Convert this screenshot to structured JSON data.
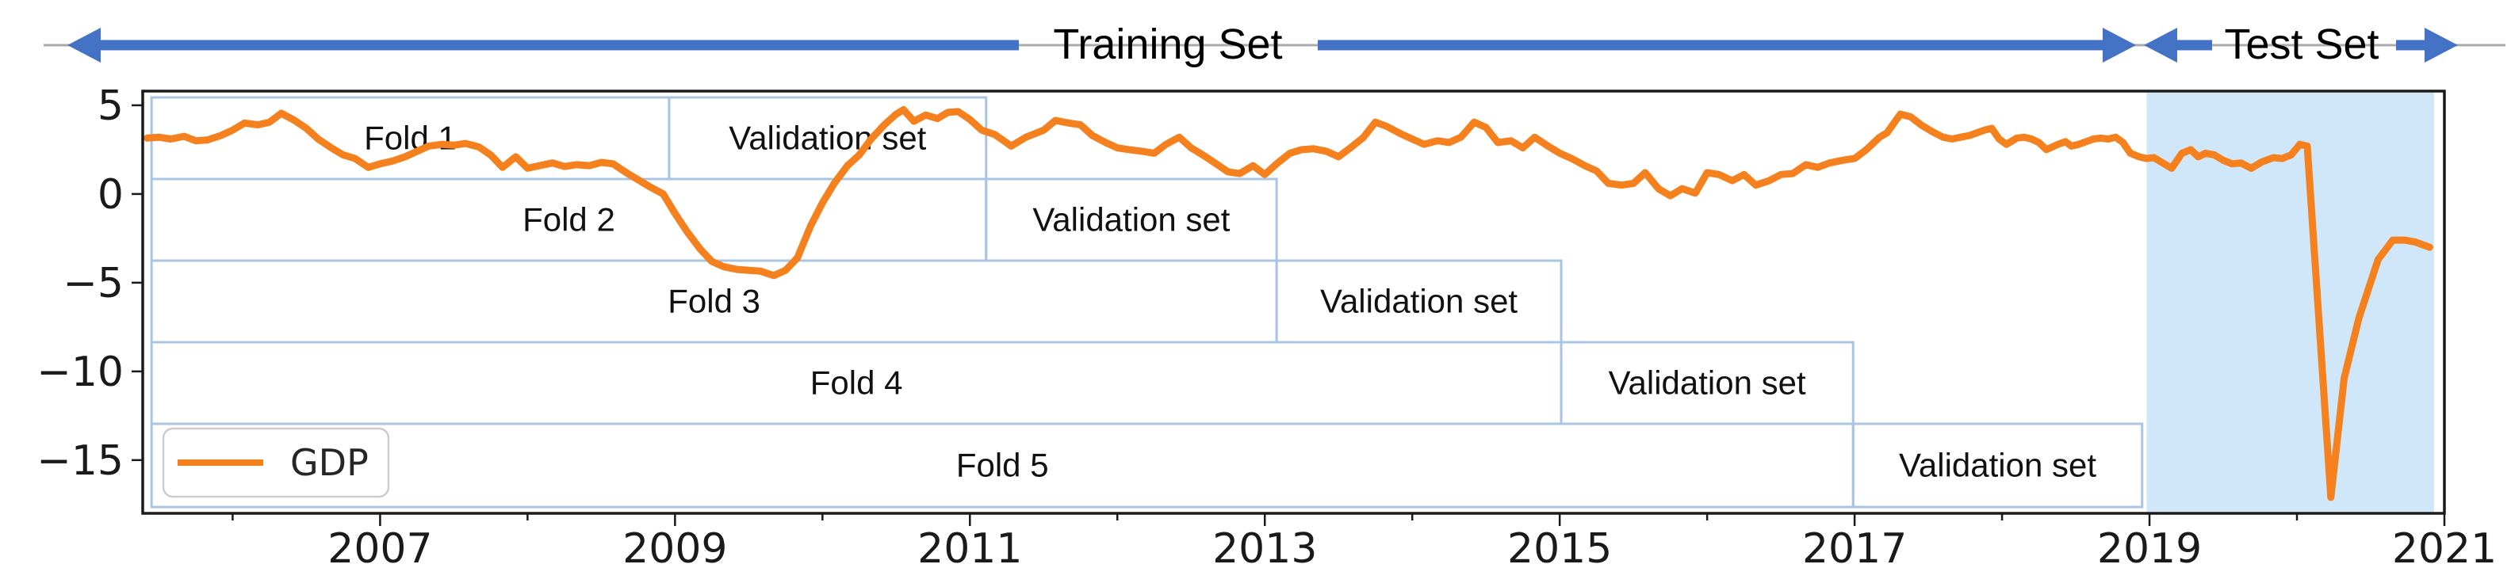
{
  "header": {
    "training_label": "Training Set",
    "test_label": "Test Set",
    "arrow_color": "#4472c4",
    "guide_line_color": "#ababab"
  },
  "chart_data": {
    "type": "line",
    "title": "",
    "xlabel": "",
    "ylabel": "",
    "xlim": [
      2005.39,
      2021.0
    ],
    "ylim": [
      -18.0,
      5.8
    ],
    "grid": false,
    "xticks_labeled": [
      "2007",
      "2009",
      "2011",
      "2013",
      "2015",
      "2017",
      "2019",
      "2021"
    ],
    "xticks_labeled_years": [
      2007,
      2009,
      2011,
      2013,
      2015,
      2017,
      2019,
      2021
    ],
    "xticks_minor_years": [
      2006,
      2008,
      2010,
      2012,
      2014,
      2016,
      2018,
      2020
    ],
    "yticks": [
      "5",
      "0",
      "−5",
      "−10",
      "−15"
    ],
    "ytick_values": [
      5,
      0,
      -5,
      -10,
      -15
    ],
    "legend": {
      "label": "GDP",
      "position": "lower-left"
    },
    "colors": {
      "gdp_line": "#f5801e",
      "box_border": "#a9c4e4",
      "test_fill": "#cfe7f8",
      "frame": "#1a1a1a"
    },
    "folds": [
      {
        "label": "Fold 1",
        "train_start": 2005.45,
        "train_end": 2008.96,
        "val_label": "Validation set",
        "val_start": 2008.96,
        "val_end": 2011.11
      },
      {
        "label": "Fold 2",
        "train_start": 2005.45,
        "train_end": 2011.11,
        "val_label": "Validation set",
        "val_start": 2011.11,
        "val_end": 2013.08
      },
      {
        "label": "Fold 3",
        "train_start": 2005.45,
        "train_end": 2013.08,
        "val_label": "Validation set",
        "val_start": 2013.08,
        "val_end": 2015.01
      },
      {
        "label": "Fold 4",
        "train_start": 2005.45,
        "train_end": 2015.01,
        "val_label": "Validation set",
        "val_start": 2015.01,
        "val_end": 2016.99
      },
      {
        "label": "Fold 5",
        "train_start": 2005.45,
        "train_end": 2016.99,
        "val_label": "Validation set",
        "val_start": 2016.99,
        "val_end": 2018.95
      }
    ],
    "test_region": {
      "start": 2018.98,
      "end": 2020.93
    },
    "series": [
      {
        "name": "GDP",
        "points": [
          [
            2005.42,
            3.15
          ],
          [
            2005.5,
            3.2
          ],
          [
            2005.58,
            3.1
          ],
          [
            2005.67,
            3.25
          ],
          [
            2005.75,
            3.0
          ],
          [
            2005.83,
            3.05
          ],
          [
            2005.92,
            3.3
          ],
          [
            2006.0,
            3.6
          ],
          [
            2006.08,
            4.0
          ],
          [
            2006.17,
            3.9
          ],
          [
            2006.25,
            4.05
          ],
          [
            2006.33,
            4.55
          ],
          [
            2006.42,
            4.15
          ],
          [
            2006.5,
            3.7
          ],
          [
            2006.58,
            3.1
          ],
          [
            2006.67,
            2.6
          ],
          [
            2006.75,
            2.2
          ],
          [
            2006.83,
            2.0
          ],
          [
            2006.92,
            1.5
          ],
          [
            2007.0,
            1.7
          ],
          [
            2007.08,
            1.85
          ],
          [
            2007.17,
            2.1
          ],
          [
            2007.25,
            2.4
          ],
          [
            2007.33,
            2.7
          ],
          [
            2007.42,
            2.8
          ],
          [
            2007.5,
            2.75
          ],
          [
            2007.58,
            2.85
          ],
          [
            2007.67,
            2.65
          ],
          [
            2007.75,
            2.2
          ],
          [
            2007.83,
            1.5
          ],
          [
            2007.92,
            2.1
          ],
          [
            2008.0,
            1.45
          ],
          [
            2008.08,
            1.6
          ],
          [
            2008.17,
            1.75
          ],
          [
            2008.25,
            1.55
          ],
          [
            2008.33,
            1.65
          ],
          [
            2008.42,
            1.6
          ],
          [
            2008.5,
            1.78
          ],
          [
            2008.58,
            1.7
          ],
          [
            2008.67,
            1.2
          ],
          [
            2008.75,
            0.8
          ],
          [
            2008.83,
            0.4
          ],
          [
            2008.92,
            0.0
          ],
          [
            2009.0,
            -1.1
          ],
          [
            2009.08,
            -2.1
          ],
          [
            2009.17,
            -3.1
          ],
          [
            2009.25,
            -3.8
          ],
          [
            2009.33,
            -4.1
          ],
          [
            2009.42,
            -4.25
          ],
          [
            2009.5,
            -4.3
          ],
          [
            2009.58,
            -4.35
          ],
          [
            2009.67,
            -4.6
          ],
          [
            2009.75,
            -4.3
          ],
          [
            2009.83,
            -3.6
          ],
          [
            2009.92,
            -1.8
          ],
          [
            2010.0,
            -0.5
          ],
          [
            2010.08,
            0.6
          ],
          [
            2010.17,
            1.6
          ],
          [
            2010.25,
            2.2
          ],
          [
            2010.33,
            3.1
          ],
          [
            2010.42,
            3.9
          ],
          [
            2010.5,
            4.5
          ],
          [
            2010.55,
            4.75
          ],
          [
            2010.62,
            4.1
          ],
          [
            2010.7,
            4.45
          ],
          [
            2010.78,
            4.25
          ],
          [
            2010.85,
            4.6
          ],
          [
            2010.92,
            4.65
          ],
          [
            2011.0,
            4.2
          ],
          [
            2011.08,
            3.6
          ],
          [
            2011.17,
            3.35
          ],
          [
            2011.28,
            2.7
          ],
          [
            2011.38,
            3.2
          ],
          [
            2011.5,
            3.6
          ],
          [
            2011.58,
            4.15
          ],
          [
            2011.67,
            4.0
          ],
          [
            2011.75,
            3.9
          ],
          [
            2011.83,
            3.3
          ],
          [
            2011.92,
            2.9
          ],
          [
            2012.0,
            2.6
          ],
          [
            2012.08,
            2.5
          ],
          [
            2012.17,
            2.4
          ],
          [
            2012.25,
            2.3
          ],
          [
            2012.33,
            2.8
          ],
          [
            2012.42,
            3.2
          ],
          [
            2012.5,
            2.6
          ],
          [
            2012.58,
            2.2
          ],
          [
            2012.67,
            1.7
          ],
          [
            2012.75,
            1.25
          ],
          [
            2012.83,
            1.15
          ],
          [
            2012.92,
            1.6
          ],
          [
            2013.0,
            1.1
          ],
          [
            2013.08,
            1.7
          ],
          [
            2013.17,
            2.3
          ],
          [
            2013.25,
            2.5
          ],
          [
            2013.33,
            2.55
          ],
          [
            2013.42,
            2.4
          ],
          [
            2013.5,
            2.1
          ],
          [
            2013.58,
            2.6
          ],
          [
            2013.67,
            3.2
          ],
          [
            2013.75,
            4.05
          ],
          [
            2013.83,
            3.8
          ],
          [
            2013.92,
            3.4
          ],
          [
            2014.0,
            3.1
          ],
          [
            2014.08,
            2.8
          ],
          [
            2014.17,
            3.0
          ],
          [
            2014.25,
            2.9
          ],
          [
            2014.33,
            3.2
          ],
          [
            2014.42,
            4.05
          ],
          [
            2014.5,
            3.75
          ],
          [
            2014.58,
            2.9
          ],
          [
            2014.67,
            3.0
          ],
          [
            2014.75,
            2.6
          ],
          [
            2014.83,
            3.2
          ],
          [
            2014.92,
            2.7
          ],
          [
            2015.0,
            2.3
          ],
          [
            2015.08,
            2.0
          ],
          [
            2015.17,
            1.6
          ],
          [
            2015.25,
            1.3
          ],
          [
            2015.33,
            0.6
          ],
          [
            2015.42,
            0.5
          ],
          [
            2015.5,
            0.6
          ],
          [
            2015.58,
            1.2
          ],
          [
            2015.67,
            0.3
          ],
          [
            2015.75,
            -0.1
          ],
          [
            2015.83,
            0.3
          ],
          [
            2015.92,
            0.05
          ],
          [
            2016.0,
            1.2
          ],
          [
            2016.08,
            1.1
          ],
          [
            2016.17,
            0.75
          ],
          [
            2016.25,
            1.1
          ],
          [
            2016.33,
            0.5
          ],
          [
            2016.42,
            0.75
          ],
          [
            2016.5,
            1.1
          ],
          [
            2016.58,
            1.15
          ],
          [
            2016.67,
            1.65
          ],
          [
            2016.75,
            1.5
          ],
          [
            2016.83,
            1.75
          ],
          [
            2016.92,
            1.9
          ],
          [
            2017.0,
            2.0
          ],
          [
            2017.08,
            2.5
          ],
          [
            2017.17,
            3.2
          ],
          [
            2017.22,
            3.45
          ],
          [
            2017.31,
            4.5
          ],
          [
            2017.38,
            4.35
          ],
          [
            2017.45,
            3.9
          ],
          [
            2017.53,
            3.5
          ],
          [
            2017.6,
            3.2
          ],
          [
            2017.66,
            3.1
          ],
          [
            2017.72,
            3.2
          ],
          [
            2017.78,
            3.3
          ],
          [
            2017.88,
            3.6
          ],
          [
            2017.93,
            3.7
          ],
          [
            2017.98,
            3.1
          ],
          [
            2018.03,
            2.8
          ],
          [
            2018.1,
            3.15
          ],
          [
            2018.15,
            3.2
          ],
          [
            2018.2,
            3.1
          ],
          [
            2018.25,
            2.9
          ],
          [
            2018.3,
            2.5
          ],
          [
            2018.38,
            2.8
          ],
          [
            2018.43,
            2.95
          ],
          [
            2018.47,
            2.7
          ],
          [
            2018.52,
            2.8
          ],
          [
            2018.57,
            2.95
          ],
          [
            2018.62,
            3.1
          ],
          [
            2018.67,
            3.15
          ],
          [
            2018.72,
            3.1
          ],
          [
            2018.77,
            3.2
          ],
          [
            2018.82,
            2.9
          ],
          [
            2018.87,
            2.3
          ],
          [
            2018.93,
            2.1
          ],
          [
            2018.98,
            2.0
          ],
          [
            2019.03,
            2.05
          ],
          [
            2019.09,
            1.75
          ],
          [
            2019.15,
            1.45
          ],
          [
            2019.22,
            2.3
          ],
          [
            2019.28,
            2.5
          ],
          [
            2019.33,
            2.1
          ],
          [
            2019.38,
            2.3
          ],
          [
            2019.44,
            2.2
          ],
          [
            2019.5,
            1.9
          ],
          [
            2019.56,
            1.7
          ],
          [
            2019.62,
            1.75
          ],
          [
            2019.69,
            1.45
          ],
          [
            2019.76,
            1.8
          ],
          [
            2019.84,
            2.05
          ],
          [
            2019.9,
            2.0
          ],
          [
            2019.96,
            2.2
          ],
          [
            2020.02,
            2.8
          ],
          [
            2020.07,
            2.7
          ],
          [
            2020.23,
            -17.1
          ],
          [
            2020.32,
            -10.4
          ],
          [
            2020.42,
            -7.0
          ],
          [
            2020.55,
            -3.7
          ],
          [
            2020.65,
            -2.6
          ],
          [
            2020.73,
            -2.6
          ],
          [
            2020.8,
            -2.7
          ],
          [
            2020.9,
            -3.0
          ]
        ]
      }
    ]
  }
}
